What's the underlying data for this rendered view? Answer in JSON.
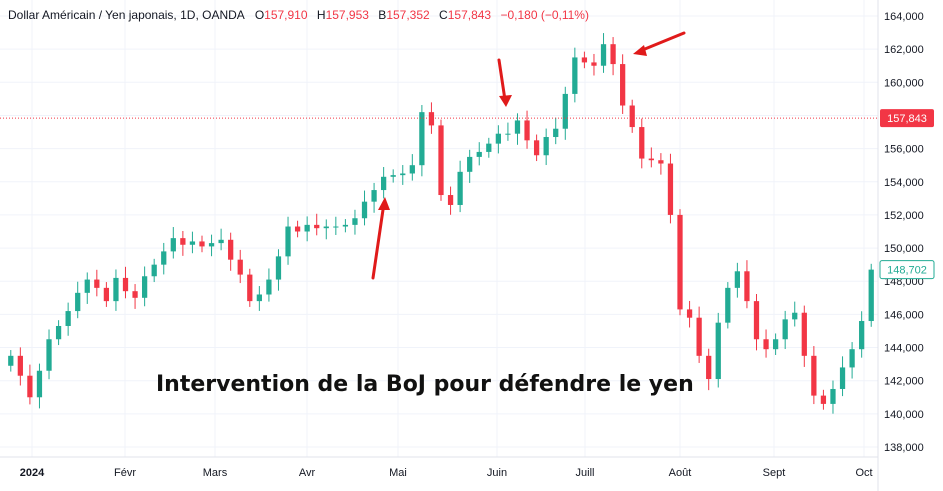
{
  "header": {
    "symbol": "Dollar Américain / Yen japonais, 1D, OANDA",
    "o_label": "O",
    "o_value": "157,910",
    "h_label": "H",
    "h_value": "157,953",
    "b_label": "B",
    "b_value": "157,352",
    "c_label": "C",
    "c_value": "157,843",
    "change": "−0,180 (−0,11%)"
  },
  "annotation": "Intervention de la BoJ pour défendre le yen",
  "colors": {
    "up": "#22ab94",
    "down": "#f23645",
    "arrow": "#e01a1a",
    "grid": "#f0f3fa",
    "ref_line": "#f23645"
  },
  "chart_data": {
    "type": "candlestick",
    "ylim": [
      137000,
      164800
    ],
    "y_ticks": [
      "138,000",
      "140,000",
      "142,000",
      "144,000",
      "146,000",
      "148,000",
      "150,000",
      "152,000",
      "154,000",
      "156,000",
      "158,000",
      "160,000",
      "162,000",
      "164,000"
    ],
    "x_ticks": [
      "2024",
      "Févr",
      "Mars",
      "Avr",
      "Mai",
      "Juin",
      "Juill",
      "Août",
      "Sept",
      "Oct"
    ],
    "reference_line": {
      "label": "157,843",
      "value": 157.843
    },
    "last_price": {
      "label": "148,702",
      "value": 148.702
    },
    "closes": [
      143.5,
      142.3,
      141.0,
      142.6,
      144.5,
      145.3,
      146.2,
      147.3,
      148.1,
      147.6,
      146.8,
      148.2,
      147.4,
      147.0,
      148.3,
      149.0,
      149.8,
      150.6,
      150.2,
      150.4,
      150.1,
      150.3,
      150.5,
      149.3,
      148.4,
      146.8,
      147.2,
      148.1,
      149.5,
      151.3,
      151.0,
      151.4,
      151.2,
      151.3,
      151.3,
      151.4,
      151.8,
      152.8,
      153.5,
      154.3,
      154.4,
      154.5,
      155.0,
      158.2,
      157.4,
      153.2,
      152.6,
      154.6,
      155.5,
      155.8,
      156.3,
      156.9,
      156.9,
      157.7,
      156.5,
      155.6,
      156.7,
      157.2,
      159.3,
      161.5,
      161.2,
      161.0,
      162.3,
      161.1,
      158.6,
      157.3,
      155.4,
      155.3,
      155.1,
      152.0,
      146.3,
      145.8,
      143.5,
      142.1,
      145.5,
      147.6,
      148.6,
      146.8,
      144.5,
      143.9,
      144.5,
      145.7,
      146.1,
      143.5,
      141.1,
      140.6,
      141.5,
      142.8,
      143.9,
      145.6,
      148.7
    ]
  }
}
